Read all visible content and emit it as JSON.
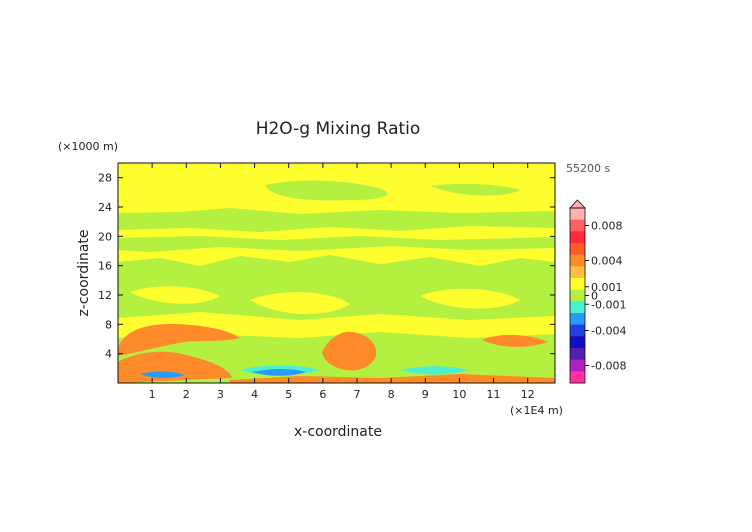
{
  "chart_data": {
    "type": "heatmap",
    "title": "H2O-g Mixing Ratio",
    "xlabel": "x-coordinate",
    "ylabel": "z-coordinate",
    "x_unit": "(×1E4 m)",
    "y_unit": "(×1000 m)",
    "time_label": "55200 s",
    "xlim": [
      0,
      12.8
    ],
    "ylim": [
      0,
      30
    ],
    "x_ticks": [
      1,
      2,
      3,
      4,
      5,
      6,
      7,
      8,
      9,
      10,
      11,
      12
    ],
    "y_ticks": [
      4,
      8,
      12,
      16,
      20,
      24,
      28
    ],
    "colorbar": {
      "tick_labels": [
        "0.008",
        "0.004",
        "0.001",
        "0",
        "-0.001",
        "-0.004",
        "-0.008"
      ],
      "tick_values": [
        0.008,
        0.004,
        0.001,
        0,
        -0.001,
        -0.004,
        -0.008
      ],
      "range": [
        -0.01,
        0.01
      ],
      "colors_top_to_bottom": [
        "#ffb0b0",
        "#ff6060",
        "#ff2a3a",
        "#ff5a2a",
        "#ff8a2a",
        "#ffc040",
        "#ffff30",
        "#b4f040",
        "#4af0d0",
        "#2a9aff",
        "#2040e0",
        "#1010c0",
        "#5020b0",
        "#b020c0",
        "#ff30a0"
      ]
    },
    "regions": [
      {
        "name": "background",
        "level": "0.0005",
        "color": "#ffff30"
      },
      {
        "name": "moist-bands",
        "level": "-0.0005",
        "color": "#b4f040"
      },
      {
        "name": "orange-anomalies",
        "level": "0.002",
        "color": "#ff8a2a"
      },
      {
        "name": "blue-dry-patches",
        "level": "-0.002",
        "color": "#2a9aff"
      }
    ]
  }
}
